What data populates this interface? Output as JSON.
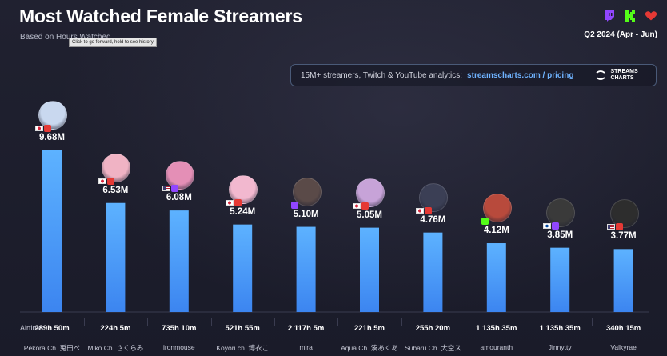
{
  "header": {
    "title": "Most Watched Female Streamers",
    "subtitle": "Based on Hours Watched",
    "tooltip": "Click to go forward, hold to see history",
    "period": "Q2 2024 (Apr - Jun)"
  },
  "platform_icons": [
    "twitch-icon",
    "kick-icon",
    "youtube-icon"
  ],
  "promo": {
    "text": "15M+ streamers, Twitch & YouTube analytics:",
    "link": "streamscharts.com / pricing",
    "brand_line1": "STREAMS",
    "brand_line2": "CHARTS"
  },
  "airtime_label": "Airtime:",
  "colors": {
    "bar_top": "#5db2ff",
    "bar_bottom": "#3c85f0",
    "background": "#1b1c2b",
    "twitch": "#9146ff",
    "kick": "#53fc18",
    "youtube": "#e53935"
  },
  "chart_data": {
    "type": "bar",
    "title": "Most Watched Female Streamers",
    "ylim": [
      0,
      10.5
    ],
    "categories": [
      "Pekora Ch. 兎田ぺ",
      "Miko Ch. さくらみ",
      "ironmouse",
      "Koyori ch. 博衣こ",
      "mira",
      "Aqua Ch. 湊あくあ",
      "Subaru Ch. 大空ス",
      "amouranth",
      "Jinnytty",
      "Valkyrae"
    ],
    "values": [
      9.68,
      6.53,
      6.08,
      5.24,
      5.1,
      5.05,
      4.76,
      4.12,
      3.85,
      3.77
    ],
    "value_labels": [
      "9.68M",
      "6.53M",
      "6.08M",
      "5.24M",
      "5.10M",
      "5.05M",
      "4.76M",
      "4.12M",
      "3.85M",
      "3.77M"
    ],
    "airtime": [
      "289h 50m",
      "224h 5m",
      "735h 10m",
      "521h 55m",
      "2 117h 5m",
      "221h 5m",
      "255h 20m",
      "1 135h 35m",
      "1 135h 35m",
      "340h 15m"
    ],
    "countries": [
      "jp",
      "jp",
      "us",
      "jp",
      "",
      "jp",
      "jp",
      "",
      "kr",
      "us"
    ],
    "platforms": [
      "youtube",
      "youtube",
      "twitch",
      "youtube",
      "twitch",
      "youtube",
      "youtube",
      "kick",
      "twitch",
      "youtube"
    ],
    "avatar_colors": [
      "#c9d8ef",
      "#f0b3c4",
      "#e48fb6",
      "#f2b8cf",
      "#5a4a48",
      "#c7a3d8",
      "#3b3f55",
      "#b84a3c",
      "#3a3a3a",
      "#2d2d2d"
    ]
  }
}
